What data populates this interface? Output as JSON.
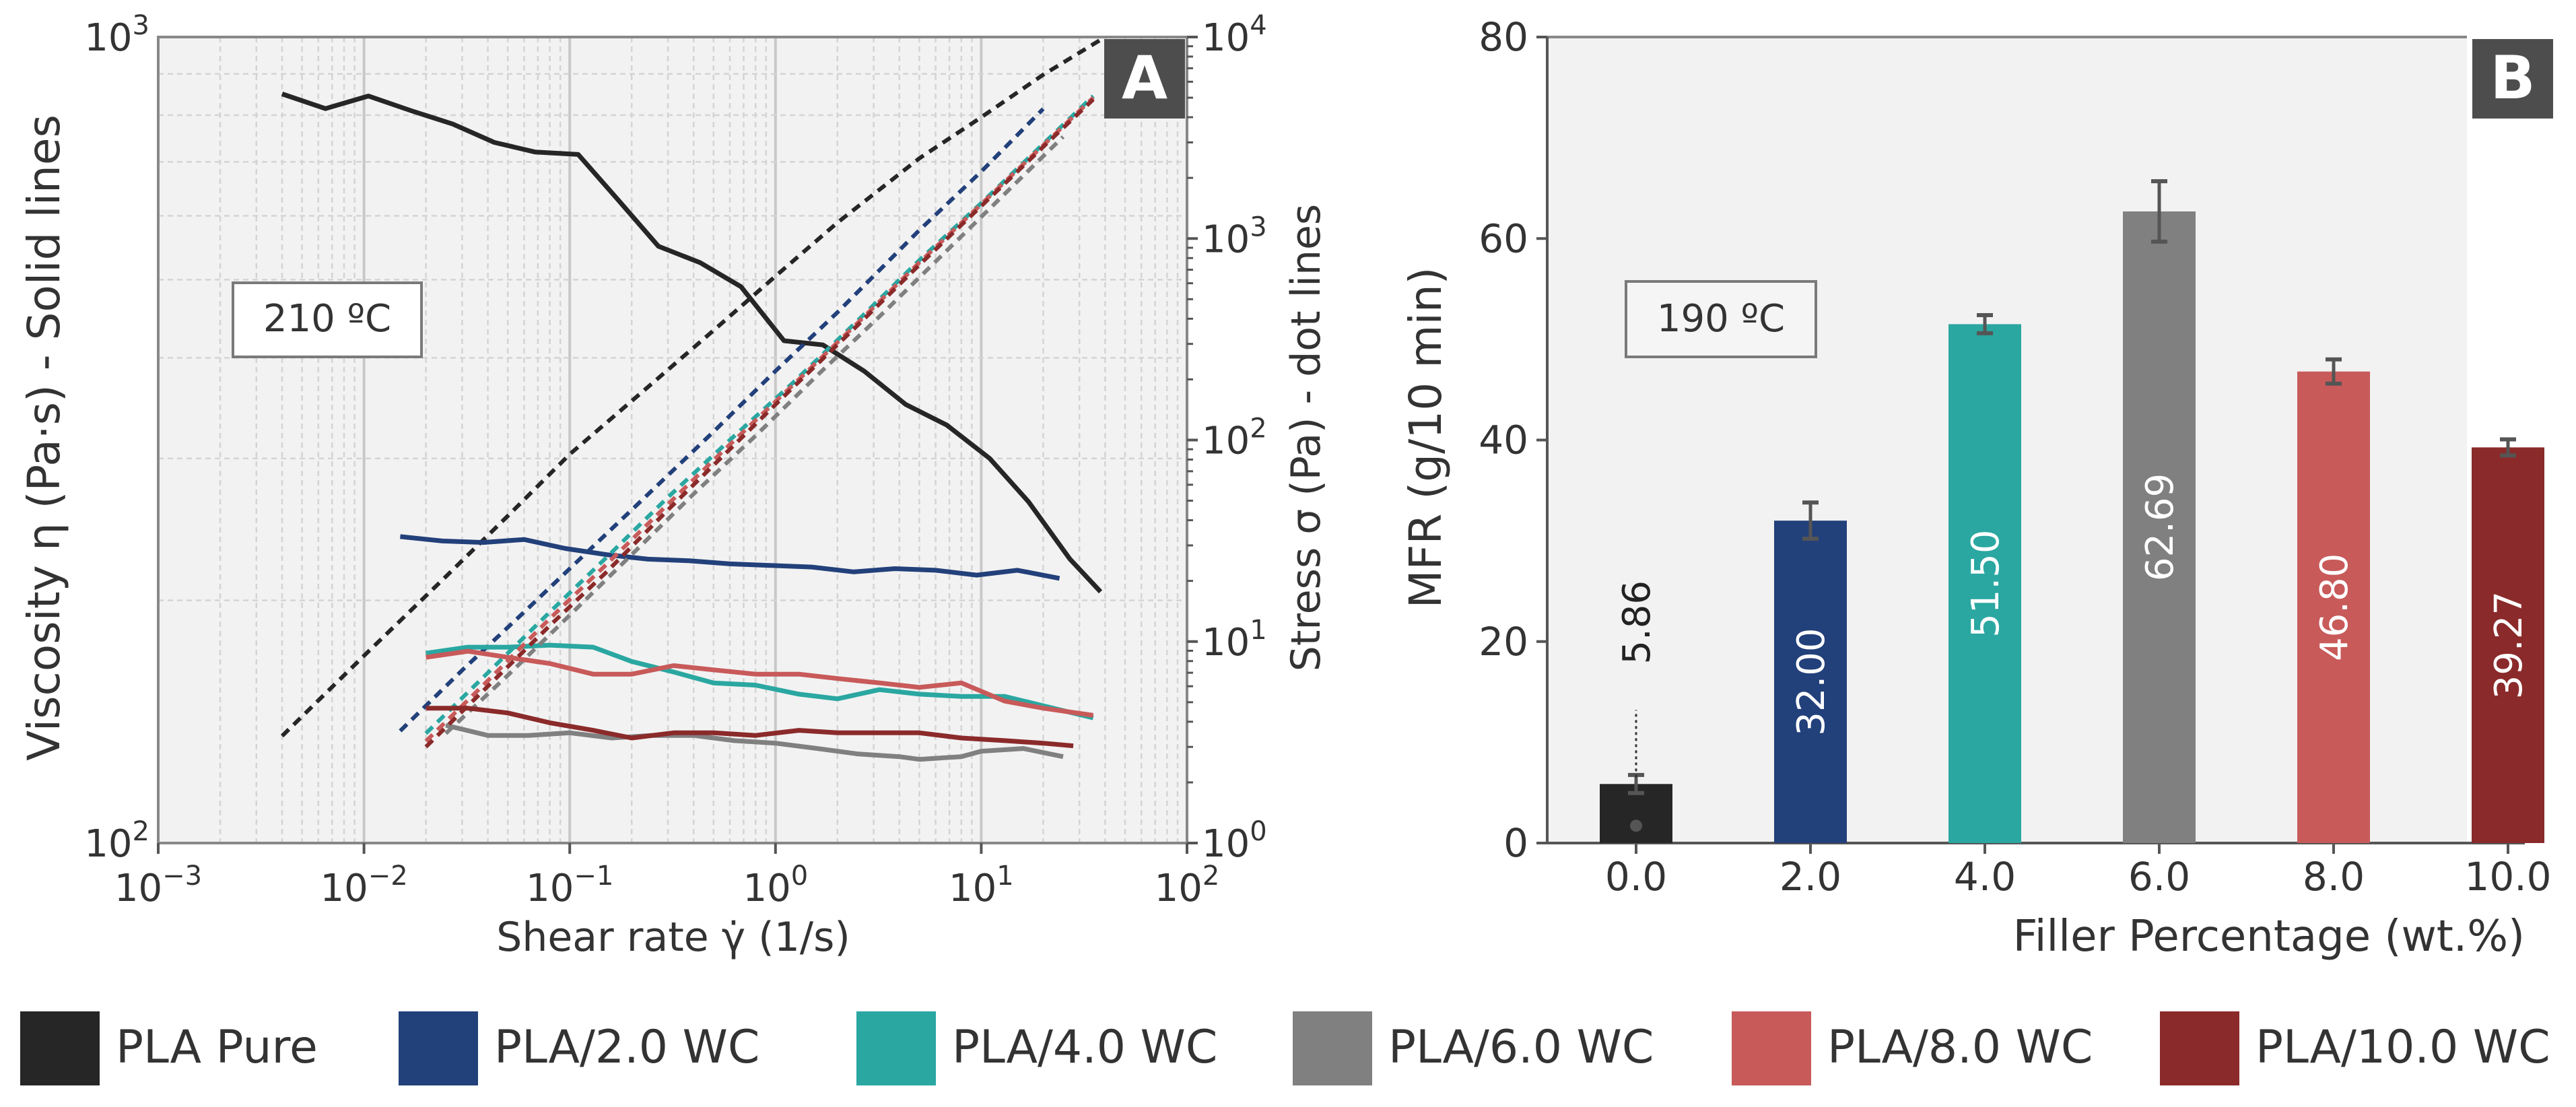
{
  "colors": {
    "PLA Pure": "#262626",
    "PLA/2.0 WC": "#22407a",
    "PLA/4.0 WC": "#2aa7a1",
    "PLA/6.0 WC": "#808080",
    "PLA/8.0 WC": "#c85a5a",
    "PLA/10.0 WC": "#8b2a2a"
  },
  "legend": {
    "items": [
      "PLA Pure",
      "PLA/2.0 WC",
      "PLA/4.0 WC",
      "PLA/6.0 WC",
      "PLA/8.0 WC",
      "PLA/10.0 WC"
    ]
  },
  "chart_data": [
    {
      "panel": "A",
      "type": "line",
      "annotation": "210 ºC",
      "xlabel": "Shear rate γ̇  (1/s)",
      "ylabel": "Viscosity η (Pa·s) - Solid lines",
      "y2label": "Stress σ (Pa) - dot lines",
      "xscale": "log",
      "xlim": [
        0.001,
        100
      ],
      "x_ticks": [
        "10−3",
        "10−2",
        "10−1",
        "100",
        "101",
        "102"
      ],
      "yscale": "log",
      "ylim": [
        100,
        1000
      ],
      "y_ticks": [
        "102",
        "103"
      ],
      "y2scale": "log",
      "y2lim": [
        1,
        10000
      ],
      "y2_ticks": [
        "100",
        "101",
        "102",
        "103",
        "104"
      ],
      "series": [
        {
          "name": "PLA Pure",
          "viscosity": {
            "x": [
              0.004,
              0.0065,
              0.0105,
              0.017,
              0.027,
              0.043,
              0.068,
              0.11,
              0.17,
              0.27,
              0.43,
              0.68,
              1.1,
              1.7,
              2.7,
              4.3,
              6.8,
              11,
              17,
              27,
              38
            ],
            "y": [
              850,
              815,
              845,
              810,
              780,
              740,
              720,
              715,
              630,
              550,
              525,
              490,
              420,
              415,
              385,
              350,
              330,
              300,
              265,
              225,
              205
            ]
          },
          "stress": {
            "x": [
              0.004,
              0.01,
              0.025,
              0.05,
              0.1,
              0.25,
              0.5,
              1,
              2,
              5,
              10,
              20,
              40
            ],
            "y": [
              3.4,
              8.5,
              21,
              42,
              85,
              190,
              350,
              650,
              1200,
              2500,
              4000,
              6500,
              10000
            ]
          }
        },
        {
          "name": "PLA/2.0 WC",
          "viscosity": {
            "x": [
              0.015,
              0.024,
              0.038,
              0.06,
              0.095,
              0.15,
              0.24,
              0.38,
              0.6,
              0.95,
              1.5,
              2.4,
              3.8,
              6,
              9.5,
              15,
              24
            ],
            "y": [
              240,
              237,
              236,
              238,
              232,
              228,
              225,
              224,
              222,
              221,
              220,
              217,
              219,
              218,
              215,
              218,
              213
            ]
          },
          "stress": {
            "x": [
              0.015,
              0.03,
              0.06,
              0.1,
              0.2,
              0.5,
              1,
              2,
              5,
              10,
              20
            ],
            "y": [
              3.6,
              7.2,
              14,
              23,
              45,
              110,
              220,
              430,
              1100,
              2150,
              4400
            ]
          }
        },
        {
          "name": "PLA/4.0 WC",
          "viscosity": {
            "x": [
              0.02,
              0.032,
              0.05,
              0.08,
              0.13,
              0.2,
              0.32,
              0.5,
              0.8,
              1.3,
              2,
              3.2,
              5,
              8,
              13,
              20,
              35
            ],
            "y": [
              172,
              175,
              175,
              176,
              175,
              168,
              163,
              158,
              157,
              153,
              151,
              155,
              153,
              152,
              152,
              148,
              143
            ]
          },
          "stress": {
            "x": [
              0.02,
              0.04,
              0.08,
              0.15,
              0.3,
              0.6,
              1.2,
              2.5,
              5,
              10,
              20,
              35
            ],
            "y": [
              3.5,
              7,
              14,
              26,
              52,
              100,
              190,
              390,
              780,
              1500,
              2950,
              5100
            ]
          }
        },
        {
          "name": "PLA/6.0 WC",
          "viscosity": {
            "x": [
              0.025,
              0.04,
              0.063,
              0.1,
              0.16,
              0.25,
              0.4,
              0.63,
              1,
              1.6,
              2.5,
              4,
              5,
              8,
              10,
              16,
              25
            ],
            "y": [
              140,
              136,
              136,
              137,
              135,
              136,
              136,
              134,
              133,
              131,
              129,
              128,
              127,
              128,
              130,
              131,
              128
            ]
          },
          "stress": {
            "x": [
              0.025,
              0.05,
              0.1,
              0.2,
              0.4,
              0.8,
              1.6,
              3.2,
              6.4,
              12.8,
              25
            ],
            "y": [
              3.5,
              6.8,
              13.5,
              27,
              54,
              105,
              210,
              410,
              820,
              1640,
              3200
            ]
          }
        },
        {
          "name": "PLA/8.0 WC",
          "viscosity": {
            "x": [
              0.02,
              0.032,
              0.05,
              0.08,
              0.13,
              0.2,
              0.32,
              0.5,
              0.8,
              1.3,
              2,
              3.2,
              5,
              8,
              13,
              20,
              35
            ],
            "y": [
              170,
              173,
              170,
              167,
              162,
              162,
              166,
              164,
              162,
              162,
              160,
              158,
              156,
              158,
              150,
              147,
              144
            ]
          },
          "stress": {
            "x": [
              0.02,
              0.04,
              0.08,
              0.15,
              0.3,
              0.6,
              1.2,
              2.5,
              5,
              10,
              20,
              35
            ],
            "y": [
              3.2,
              6.4,
              13,
              24,
              48,
              95,
              185,
              380,
              760,
              1480,
              2900,
              5000
            ]
          }
        },
        {
          "name": "PLA/10.0 WC",
          "viscosity": {
            "x": [
              0.02,
              0.032,
              0.05,
              0.08,
              0.13,
              0.2,
              0.32,
              0.5,
              0.8,
              1.3,
              2,
              3.2,
              5,
              8,
              13,
              20,
              28
            ],
            "y": [
              147,
              147,
              145,
              141,
              138,
              135,
              137,
              137,
              136,
              138,
              137,
              137,
              137,
              135,
              134,
              133,
              132
            ]
          },
          "stress": {
            "x": [
              0.02,
              0.04,
              0.08,
              0.15,
              0.3,
              0.6,
              1.2,
              2.5,
              5,
              10,
              20,
              35
            ],
            "y": [
              3.0,
              6,
              12,
              22,
              45,
              90,
              180,
              370,
              740,
              1450,
              2850,
              4900
            ]
          }
        }
      ]
    },
    {
      "panel": "B",
      "type": "bar",
      "annotation": "190 ºC",
      "xlabel": "Filler Percentage (wt.%)",
      "ylabel": "MFR (g/10 min)",
      "ylim": [
        0,
        80
      ],
      "y_ticks": [
        "0",
        "20",
        "40",
        "60",
        "80"
      ],
      "categories": [
        "0.0",
        "2.0",
        "4.0",
        "6.0",
        "8.0",
        "10.0"
      ],
      "values": [
        5.86,
        32.0,
        51.5,
        62.69,
        46.8,
        39.27
      ],
      "value_labels": [
        "5.86",
        "32.00",
        "51.50",
        "62.69",
        "46.80",
        "39.27"
      ],
      "errors": [
        0.9,
        1.8,
        0.9,
        3.0,
        1.2,
        0.8
      ],
      "series_names": [
        "PLA Pure",
        "PLA/2.0 WC",
        "PLA/4.0 WC",
        "PLA/6.0 WC",
        "PLA/8.0 WC",
        "PLA/10.0 WC"
      ]
    }
  ]
}
